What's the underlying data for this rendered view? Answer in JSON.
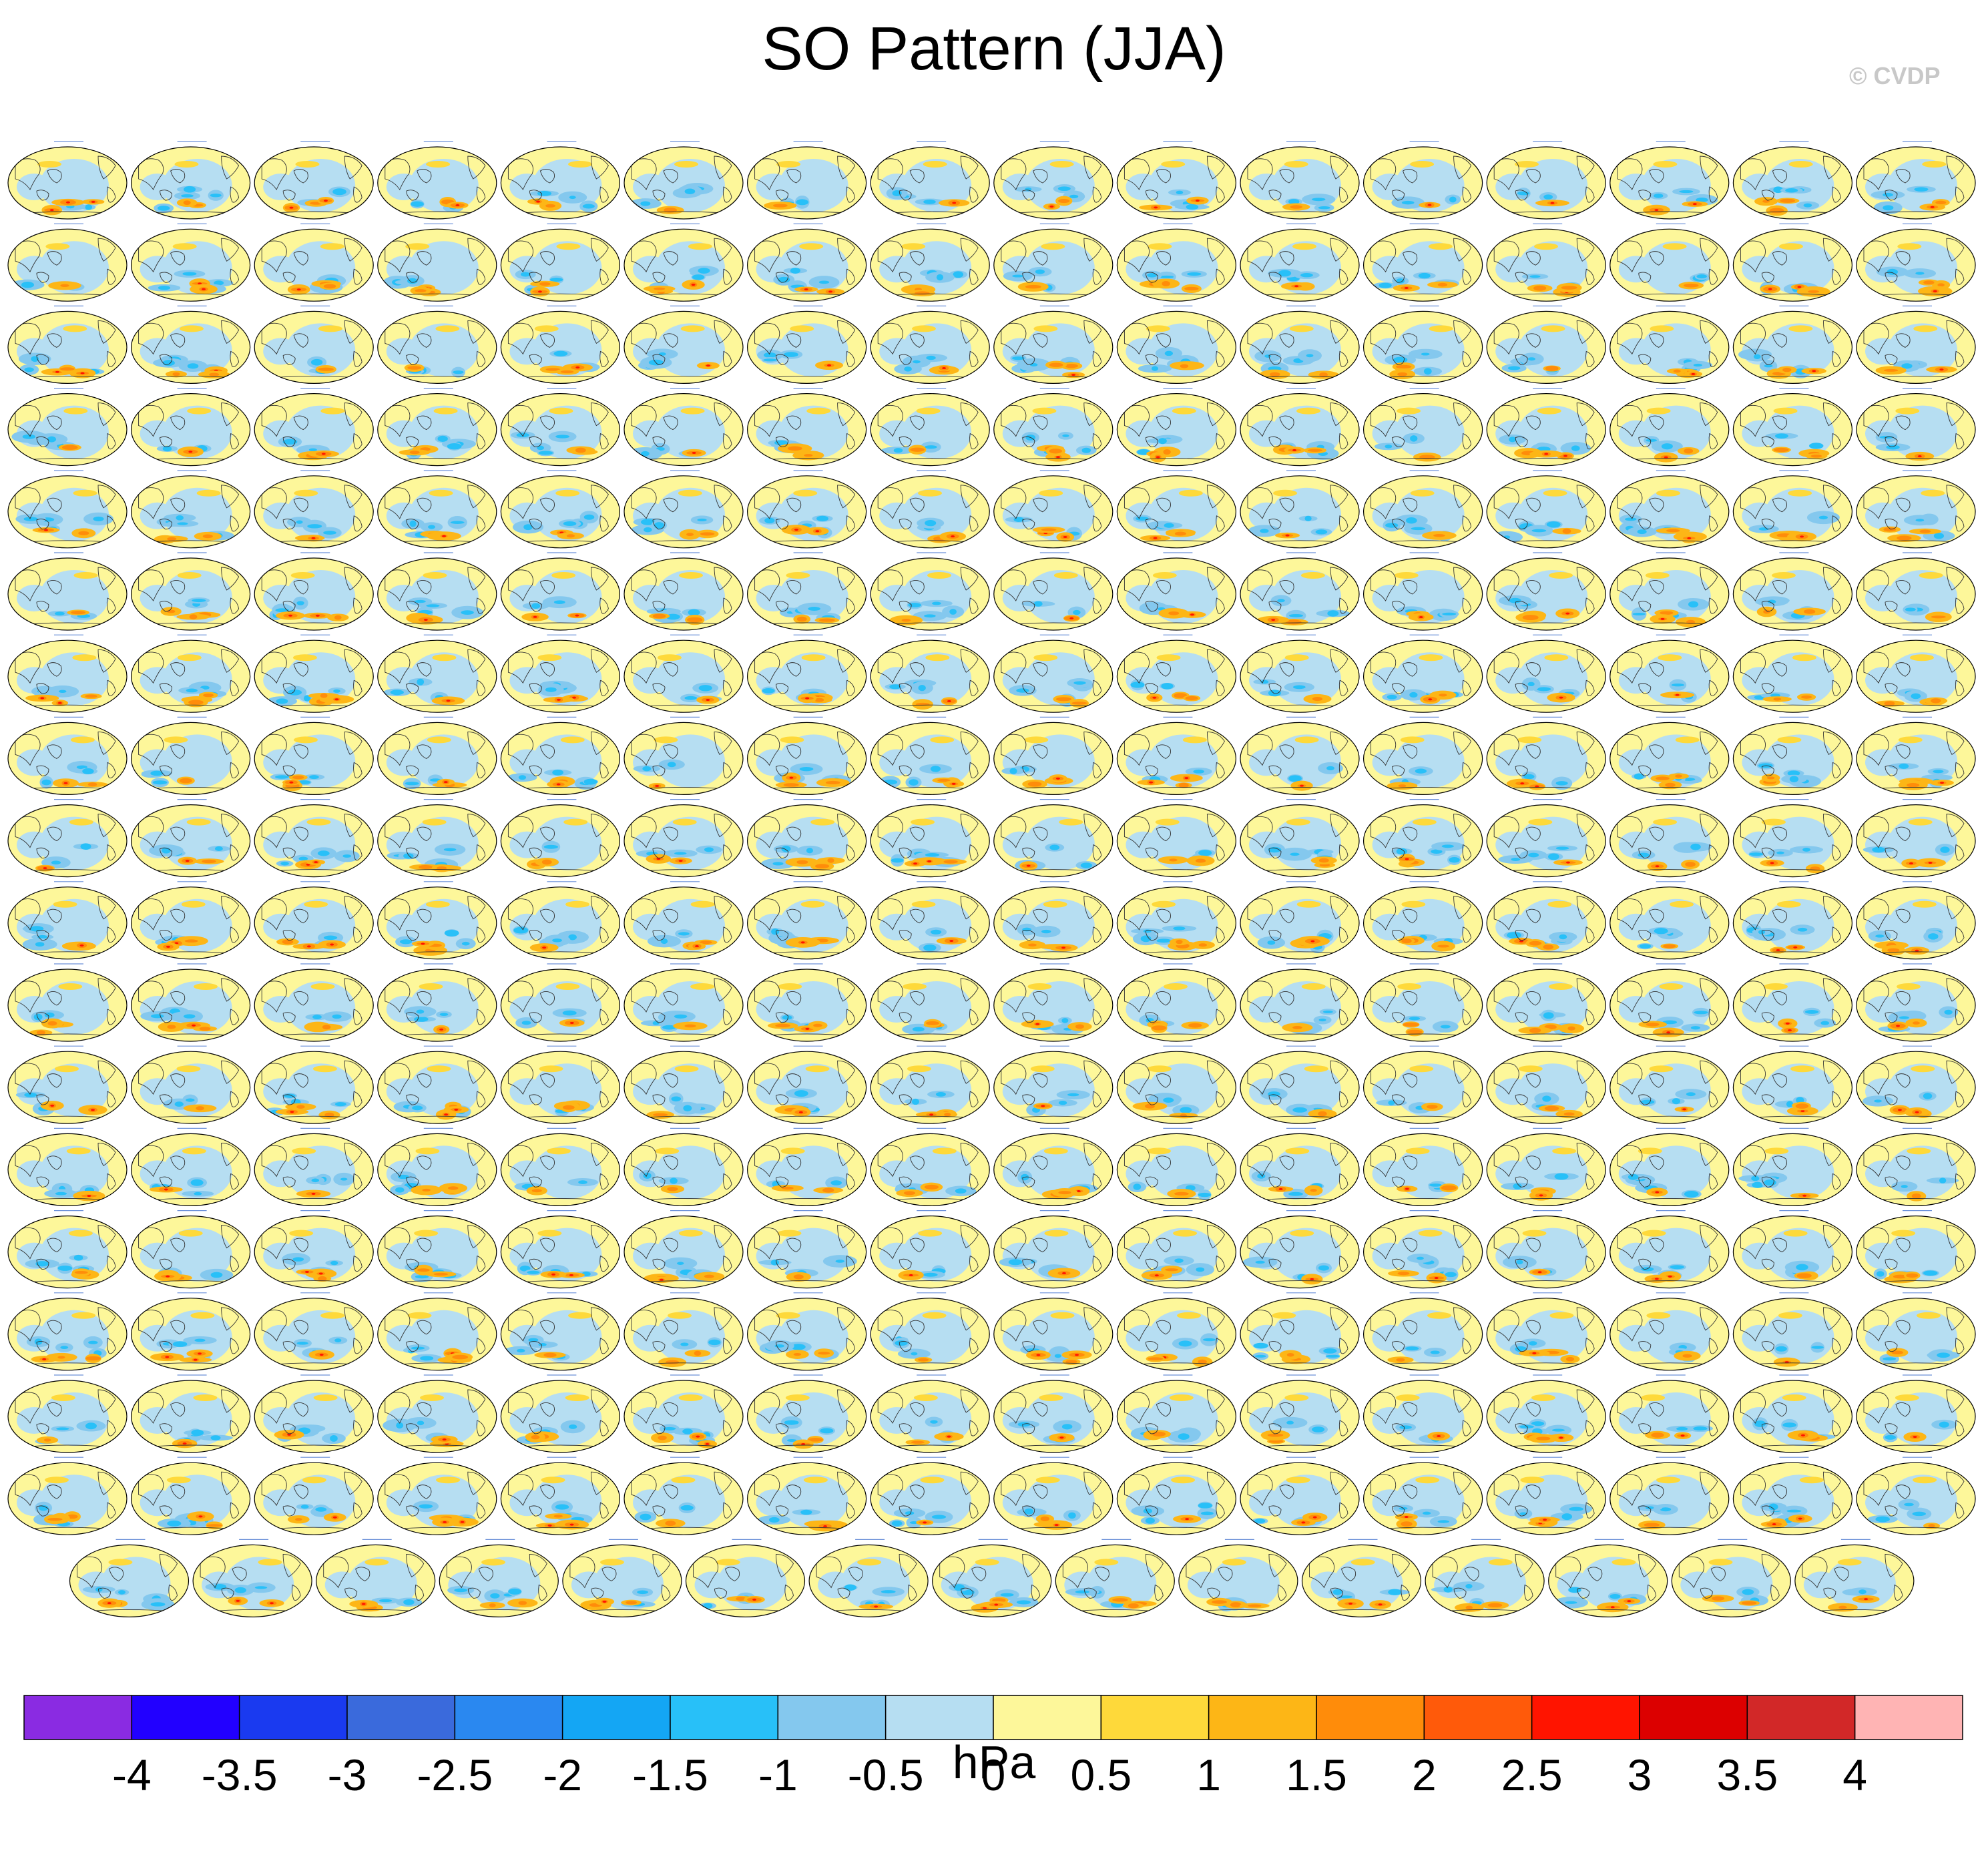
{
  "title": "SO Pattern (JJA)",
  "watermark": "© CVDP",
  "colorbar": {
    "unit": "hPa",
    "tick_labels": [
      "-4",
      "-3.5",
      "-3",
      "-2.5",
      "-2",
      "-1.5",
      "-1",
      "-0.5",
      "0",
      "0.5",
      "1",
      "1.5",
      "2",
      "2.5",
      "3",
      "3.5",
      "4"
    ],
    "colors": [
      "#8a2be2",
      "#2200ff",
      "#1a3af0",
      "#3a6adc",
      "#2a88f0",
      "#14a6f4",
      "#28c0f8",
      "#84c8ee",
      "#b6def2",
      "#fdf79a",
      "#fed93a",
      "#fdb616",
      "#ff8c0a",
      "#ff5a0a",
      "#ff1400",
      "#dc0000",
      "#d22828",
      "#ffb4b4"
    ]
  },
  "chart_data": {
    "type": "heatmap",
    "description_free": true,
    "variable": "SO Pattern (JJA)",
    "units": "hPa",
    "levels": [
      -4,
      -3.5,
      -3,
      -2.5,
      -2,
      -1.5,
      -1,
      -0.5,
      0,
      0.5,
      1,
      1.5,
      2,
      2.5,
      3,
      3.5,
      4
    ],
    "panel_grid": {
      "rows_full": 17,
      "panels_per_row": 16,
      "last_row_panels": 15
    },
    "first_panel_labels": [
      "ERA5",
      "ERA5_1"
    ],
    "period": "1950-2022"
  }
}
